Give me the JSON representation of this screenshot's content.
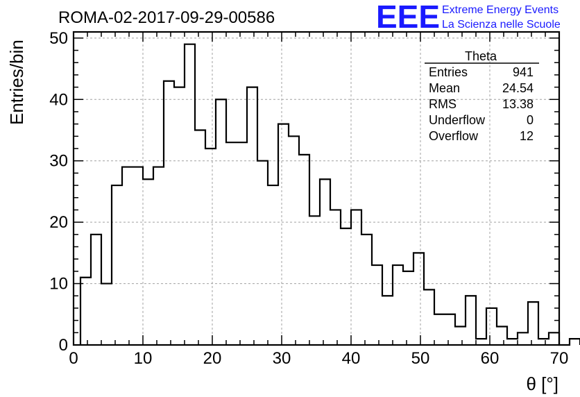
{
  "title": "ROMA-02-2017-09-29-00586",
  "logo": {
    "mark": "EEE",
    "line1": "Extreme Energy Events",
    "line2": "La Scienza nelle Scuole"
  },
  "stats": {
    "name": "Theta",
    "rows": [
      {
        "label": "Entries",
        "value": "941"
      },
      {
        "label": "Mean",
        "value": "24.54"
      },
      {
        "label": "RMS",
        "value": "13.38"
      },
      {
        "label": "Underflow",
        "value": "0"
      },
      {
        "label": "Overflow",
        "value": "12"
      }
    ]
  },
  "chart_data": {
    "type": "bar",
    "style": "step-histogram",
    "xlabel": "θ [°]",
    "ylabel": "Entries/bin",
    "xlim": [
      0,
      70
    ],
    "ylim": [
      0,
      51
    ],
    "bin_width": 1.5,
    "first_bin_low": 1.0,
    "values": [
      11,
      18,
      10,
      26,
      29,
      29,
      27,
      29,
      43,
      42,
      49,
      35,
      32,
      40,
      33,
      33,
      42,
      30,
      26,
      36,
      34,
      31,
      21,
      27,
      22,
      19,
      22,
      18,
      13,
      8,
      13,
      12,
      15,
      9,
      5,
      5,
      3,
      8,
      1,
      6,
      3,
      1,
      2,
      7,
      1,
      2,
      0,
      1
    ],
    "xticks": [
      0,
      10,
      20,
      30,
      40,
      50,
      60,
      70
    ],
    "yticks": [
      0,
      10,
      20,
      30,
      40,
      50
    ],
    "grid": true,
    "line_color": "#000000",
    "grid_color": "#a0a0a0",
    "logo_color": "#1a1aff"
  }
}
